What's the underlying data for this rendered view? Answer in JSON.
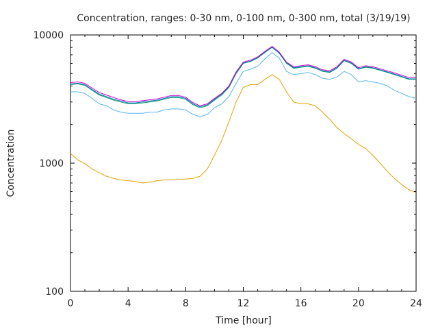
{
  "chart_data": {
    "type": "line",
    "title": "Concentration, ranges: 0-30 nm, 0-100 nm, 0-300 nm, total (3/19/19)",
    "xlabel": "Time [hour]",
    "ylabel": "Concentration",
    "xlim": [
      0,
      24
    ],
    "ylim": [
      100,
      10000
    ],
    "yscale": "log",
    "grid": false,
    "x_ticks": [
      "0",
      "4",
      "8",
      "12",
      "16",
      "20",
      "24"
    ],
    "y_ticks": [
      "100",
      "1000",
      "10000"
    ],
    "x": [
      0,
      0.5,
      1,
      1.5,
      2,
      2.5,
      3,
      3.5,
      4,
      4.5,
      5,
      5.5,
      6,
      6.5,
      7,
      7.5,
      8,
      8.5,
      9,
      9.5,
      10,
      10.5,
      11,
      11.5,
      12,
      12.5,
      13,
      13.5,
      14,
      14.5,
      15,
      15.5,
      16,
      16.5,
      17,
      17.5,
      18,
      18.5,
      19,
      19.5,
      20,
      20.5,
      21,
      21.5,
      22,
      22.5,
      23,
      23.5,
      24
    ],
    "series": [
      {
        "color": "#e6a000",
        "values": [
          1190,
          1060,
          990,
          900,
          840,
          790,
          760,
          740,
          730,
          720,
          700,
          710,
          730,
          740,
          740,
          750,
          750,
          760,
          790,
          900,
          1150,
          1500,
          2100,
          3000,
          3900,
          4100,
          4100,
          4500,
          4900,
          4500,
          3600,
          3000,
          2900,
          2900,
          2800,
          2500,
          2200,
          1900,
          1700,
          1550,
          1400,
          1300,
          1150,
          1000,
          860,
          760,
          680,
          620,
          590
        ]
      },
      {
        "color": "#56b4e9",
        "values": [
          3600,
          3600,
          3500,
          3200,
          2900,
          2800,
          2600,
          2500,
          2450,
          2450,
          2450,
          2500,
          2500,
          2600,
          2650,
          2650,
          2600,
          2400,
          2300,
          2400,
          2700,
          2900,
          3300,
          4200,
          5200,
          5400,
          5700,
          6500,
          7300,
          6600,
          5200,
          4900,
          5000,
          5100,
          4900,
          4600,
          4500,
          4700,
          5200,
          4900,
          4300,
          4400,
          4300,
          4200,
          4000,
          3700,
          3500,
          3300,
          3200
        ]
      },
      {
        "color": "#009e73",
        "values": [
          4100,
          4150,
          4050,
          3700,
          3400,
          3250,
          3100,
          3000,
          2900,
          2900,
          2950,
          3000,
          3050,
          3150,
          3250,
          3250,
          3150,
          2850,
          2700,
          2800,
          3100,
          3400,
          3900,
          5000,
          6000,
          6200,
          6600,
          7300,
          8000,
          7200,
          6000,
          5500,
          5600,
          5700,
          5500,
          5200,
          5100,
          5500,
          6300,
          6000,
          5400,
          5600,
          5500,
          5300,
          5100,
          4900,
          4700,
          4500,
          4500
        ]
      },
      {
        "color": "#0072b2",
        "values": [
          4150,
          4200,
          4100,
          3750,
          3450,
          3300,
          3150,
          3050,
          2950,
          2950,
          3000,
          3050,
          3100,
          3200,
          3300,
          3300,
          3200,
          2900,
          2750,
          2850,
          3150,
          3450,
          3950,
          5050,
          6050,
          6250,
          6650,
          7350,
          8050,
          7250,
          6050,
          5550,
          5650,
          5750,
          5550,
          5250,
          5150,
          5550,
          6350,
          6050,
          5450,
          5650,
          5550,
          5350,
          5150,
          4950,
          4750,
          4550,
          4550
        ]
      },
      {
        "color": "#cc00cc",
        "values": [
          4250,
          4300,
          4200,
          3850,
          3550,
          3400,
          3250,
          3120,
          3020,
          3020,
          3070,
          3120,
          3170,
          3270,
          3370,
          3370,
          3270,
          2970,
          2800,
          2900,
          3200,
          3500,
          4000,
          5150,
          6150,
          6350,
          6750,
          7450,
          8150,
          7350,
          6150,
          5650,
          5750,
          5850,
          5650,
          5350,
          5250,
          5650,
          6450,
          6150,
          5550,
          5750,
          5650,
          5450,
          5250,
          5050,
          4850,
          4650,
          4650
        ]
      }
    ]
  }
}
